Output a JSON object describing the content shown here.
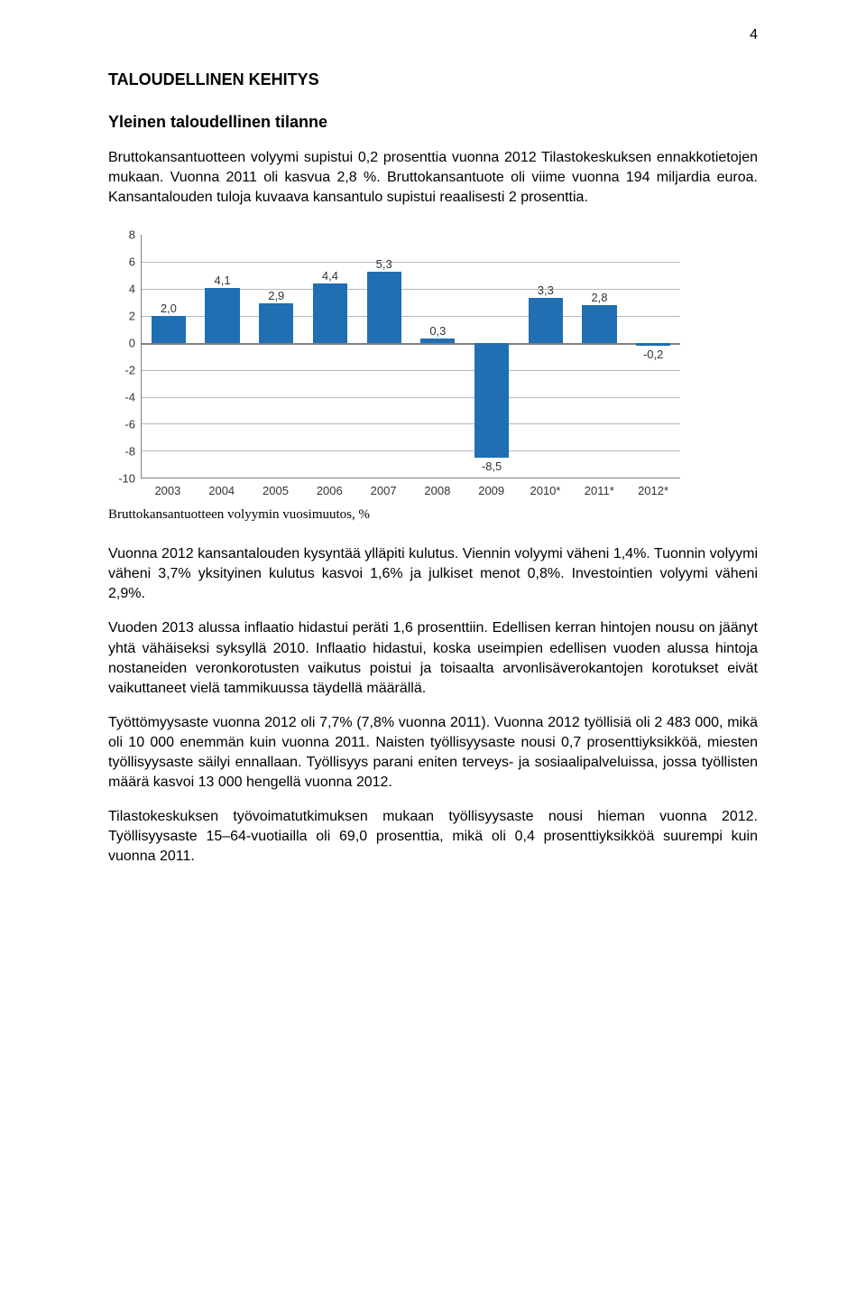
{
  "page_number": "4",
  "heading_main": "TALOUDELLINEN KEHITYS",
  "heading_sub": "Yleinen taloudellinen tilanne",
  "intro_para": "Bruttokansantuotteen volyymi supistui 0,2 prosenttia vuonna 2012 Tilastokeskuksen ennakkotietojen mukaan. Vuonna 2011 oli kasvua 2,8 %. Bruttokansantuote oli viime vuonna 194 miljardia euroa. Kansantalouden tuloja kuvaava kansantulo supistui reaalisesti 2 prosenttia.",
  "chart": {
    "type": "bar",
    "ylim": [
      -10,
      8
    ],
    "ytick_step": 2,
    "bar_color": "#1f6fb2",
    "grid_color": "#b8b8b8",
    "axis_color": "#808080",
    "background_color": "#ffffff",
    "label_fontsize": 13,
    "categories": [
      "2003",
      "2004",
      "2005",
      "2006",
      "2007",
      "2008",
      "2009",
      "2010*",
      "2011*",
      "2012*"
    ],
    "values": [
      2.0,
      4.1,
      2.9,
      4.4,
      5.3,
      0.3,
      -8.5,
      3.3,
      2.8,
      -0.2
    ],
    "value_labels": [
      "2,0",
      "4,1",
      "2,9",
      "4,4",
      "5,3",
      "0,3",
      "-8,5",
      "3,3",
      "2,8",
      "-0,2"
    ],
    "yticks": [
      "8",
      "6",
      "4",
      "2",
      "0",
      "-2",
      "-4",
      "-6",
      "-8",
      "-10"
    ]
  },
  "chart_caption": "Bruttokansantuotteen volyymin vuosimuutos, %",
  "para2": "Vuonna 2012 kansantalouden kysyntää ylläpiti kulutus. Viennin volyymi väheni 1,4%. Tuonnin volyymi väheni 3,7% yksityinen kulutus kasvoi 1,6% ja julkiset menot 0,8%. Investointien volyymi väheni 2,9%.",
  "para3": "Vuoden 2013 alussa inflaatio hidastui peräti 1,6 prosenttiin. Edellisen kerran hintojen nousu on jäänyt yhtä vähäiseksi syksyllä 2010. Inflaatio hidastui, koska useimpien edellisen vuoden alussa hintoja nostaneiden veronkorotusten vaikutus poistui ja toisaalta arvonlisäverokantojen korotukset eivät vaikuttaneet vielä tammikuussa täydellä määrällä.",
  "para4": "Työttömyysaste vuonna 2012 oli 7,7% (7,8% vuonna 2011). Vuonna 2012 työllisiä oli 2 483 000, mikä oli 10 000 enemmän kuin vuonna 2011. Naisten työllisyysaste nousi 0,7 prosenttiyksikköä, miesten työllisyysaste säilyi ennallaan. Työllisyys parani eniten terveys- ja sosiaalipalveluissa, jossa työllisten määrä kasvoi 13 000 hengellä vuonna 2012.",
  "para5": "Tilastokeskuksen työvoimatutkimuksen mukaan työllisyysaste nousi hieman vuonna 2012. Työllisyysaste 15–64-vuotiailla oli 69,0 prosenttia, mikä oli 0,4 prosenttiyksikköä suurempi kuin vuonna 2011."
}
